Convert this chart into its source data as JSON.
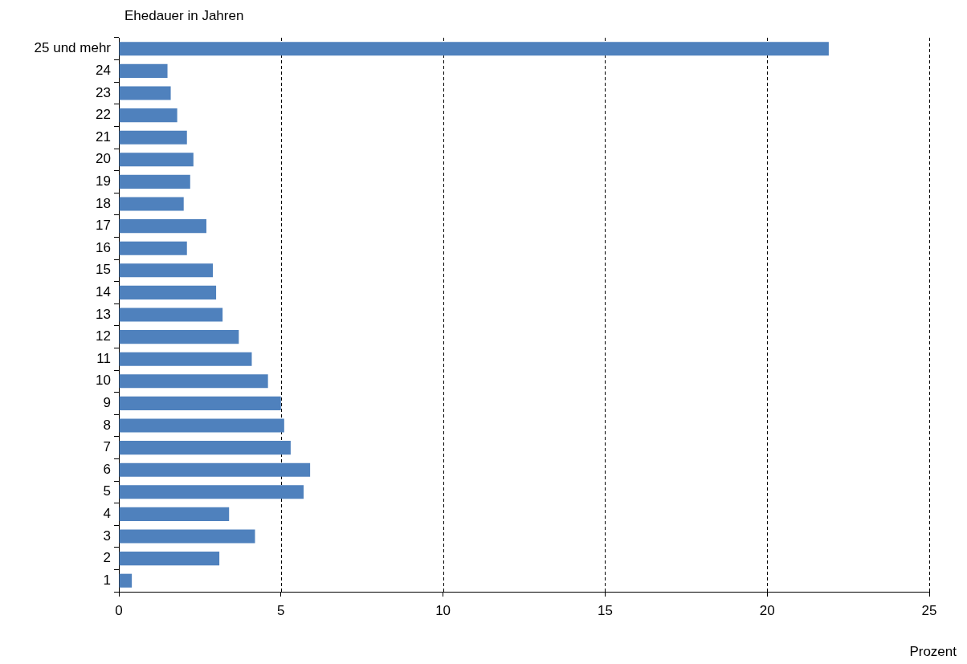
{
  "chart_data": {
    "type": "bar",
    "orientation": "horizontal",
    "ylabel": "Ehedauer in Jahren",
    "xlabel": "Prozent",
    "categories": [
      "25 und mehr",
      "24",
      "23",
      "22",
      "21",
      "20",
      "19",
      "18",
      "17",
      "16",
      "15",
      "14",
      "13",
      "12",
      "11",
      "10",
      "9",
      "8",
      "7",
      "6",
      "5",
      "4",
      "3",
      "2",
      "1"
    ],
    "values": [
      21.9,
      1.5,
      1.6,
      1.8,
      2.1,
      2.3,
      2.2,
      2.0,
      2.7,
      2.1,
      2.9,
      3.0,
      3.2,
      3.7,
      4.1,
      4.6,
      5.0,
      5.1,
      5.3,
      5.9,
      5.7,
      3.4,
      4.2,
      3.1,
      0.4
    ],
    "color": "#4f81bd",
    "xlim": [
      0,
      25
    ],
    "xticks": [
      0,
      5,
      10,
      15,
      20,
      25
    ],
    "grid": "x",
    "legend": false
  }
}
